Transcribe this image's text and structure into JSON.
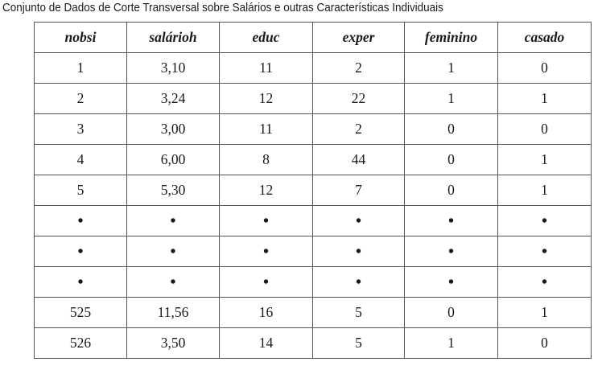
{
  "caption": "Conjunto de Dados de Corte Transversal sobre Salários e outras Características Individuais",
  "table": {
    "columns": [
      "nobsi",
      "salárioh",
      "educ",
      "exper",
      "feminino",
      "casado"
    ],
    "rows": [
      [
        "1",
        "3,10",
        "11",
        "2",
        "1",
        "0"
      ],
      [
        "2",
        "3,24",
        "12",
        "22",
        "1",
        "1"
      ],
      [
        "3",
        "3,00",
        "11",
        "2",
        "0",
        "0"
      ],
      [
        "4",
        "6,00",
        "8",
        "44",
        "0",
        "1"
      ],
      [
        "5",
        "5,30",
        "12",
        "7",
        "0",
        "1"
      ],
      [
        "•",
        "•",
        "•",
        "•",
        "•",
        "•"
      ],
      [
        "•",
        "•",
        "•",
        "•",
        "•",
        "•"
      ],
      [
        "•",
        "•",
        "•",
        "•",
        "•",
        "•"
      ],
      [
        "525",
        "11,56",
        "16",
        "5",
        "0",
        "1"
      ],
      [
        "526",
        "3,50",
        "14",
        "5",
        "1",
        "0"
      ]
    ]
  }
}
